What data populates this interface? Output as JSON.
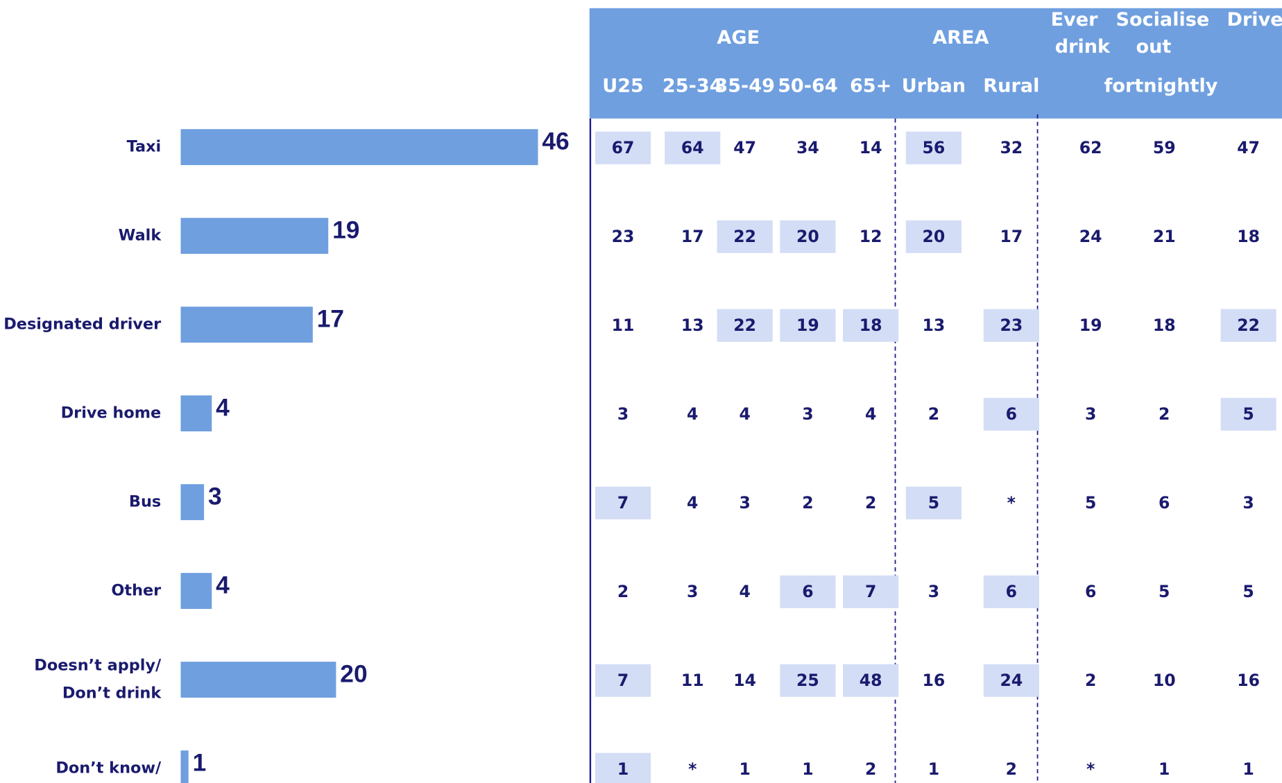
{
  "chart_data": {
    "type": "hbar",
    "categories": [
      "Taxi",
      "Walk",
      "Designated driver",
      "Drive home",
      "Bus",
      "Other",
      [
        "Doesn’t apply/",
        "Don’t drink"
      ],
      "Don’t know/"
    ],
    "values": [
      46,
      19,
      17,
      4,
      3,
      4,
      20,
      1
    ],
    "color": "#6f9fdf"
  },
  "table": {
    "groups": [
      [
        "AGE"
      ],
      [
        "AREA"
      ],
      [
        "Ever",
        "drink"
      ],
      [
        "Socialise",
        "out"
      ],
      [
        "Drive"
      ]
    ],
    "columns": [
      "U25",
      "25-34",
      "35-49",
      "50-64",
      "65+",
      "Urban",
      "Rural"
    ],
    "subnote": "fortnightly",
    "rows": [
      [
        67,
        64,
        47,
        34,
        14,
        56,
        32,
        62,
        59,
        47
      ],
      [
        23,
        17,
        22,
        20,
        12,
        20,
        17,
        24,
        21,
        18
      ],
      [
        11,
        13,
        22,
        19,
        18,
        13,
        23,
        19,
        18,
        22
      ],
      [
        3,
        4,
        4,
        3,
        4,
        2,
        6,
        3,
        2,
        5
      ],
      [
        7,
        4,
        3,
        2,
        2,
        5,
        "*",
        5,
        6,
        3
      ],
      [
        2,
        3,
        4,
        6,
        7,
        3,
        6,
        6,
        5,
        5
      ],
      [
        7,
        11,
        14,
        25,
        48,
        16,
        24,
        2,
        10,
        16
      ],
      [
        1,
        "*",
        1,
        1,
        2,
        1,
        2,
        "*",
        1,
        1
      ]
    ],
    "highlight": [
      [
        true,
        true,
        false,
        false,
        false,
        true,
        false,
        false,
        false,
        false
      ],
      [
        false,
        false,
        true,
        true,
        false,
        true,
        false,
        false,
        false,
        false
      ],
      [
        false,
        false,
        true,
        true,
        true,
        false,
        true,
        false,
        false,
        true
      ],
      [
        false,
        false,
        false,
        false,
        false,
        false,
        true,
        false,
        false,
        true
      ],
      [
        true,
        false,
        false,
        false,
        false,
        true,
        false,
        false,
        false,
        false
      ],
      [
        false,
        false,
        false,
        true,
        true,
        false,
        true,
        false,
        false,
        false
      ],
      [
        true,
        false,
        false,
        true,
        true,
        false,
        true,
        false,
        false,
        false
      ],
      [
        true,
        false,
        false,
        false,
        false,
        false,
        false,
        false,
        false,
        false
      ]
    ],
    "header_color": "#6f9fdf",
    "highlight_color": "#d3ddf5"
  }
}
